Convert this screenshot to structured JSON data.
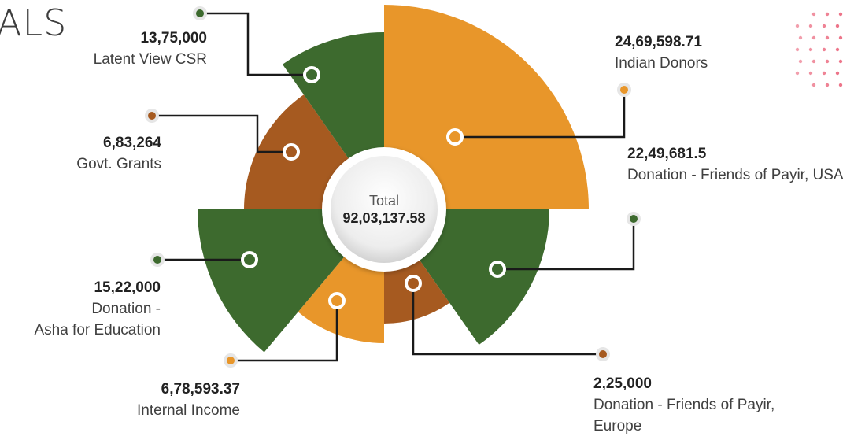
{
  "page": {
    "heading": "ALS"
  },
  "colors": {
    "orange": "#E8962A",
    "green": "#3D6A2E",
    "brown": "#A65A20",
    "dots": "#E8506A"
  },
  "chart_data": {
    "type": "pie",
    "title": "",
    "center_label": "Total",
    "total": "92,03,137.58",
    "slices": [
      {
        "name": "Indian Donors",
        "value_label": "24,69,598.71",
        "value": 2469598.71,
        "color": "orange"
      },
      {
        "name": "Donation - Friends of Payir, USA",
        "value_label": "22,49,681.5",
        "value": 2249681.5,
        "color": "green"
      },
      {
        "name": "Donation - Friends of Payir, Europe",
        "value_label": "2,25,000",
        "value": 225000,
        "color": "brown"
      },
      {
        "name": "Internal Income",
        "value_label": "6,78,593.37",
        "value": 678593.37,
        "color": "orange"
      },
      {
        "name": "Donation - Asha for Education",
        "value_label": "15,22,000",
        "value": 1522000,
        "color": "green"
      },
      {
        "name": "Govt. Grants",
        "value_label": "6,83,264",
        "value": 683264,
        "color": "brown"
      },
      {
        "name": "Latent View CSR",
        "value_label": "13,75,000",
        "value": 1375000,
        "color": "green"
      }
    ]
  }
}
